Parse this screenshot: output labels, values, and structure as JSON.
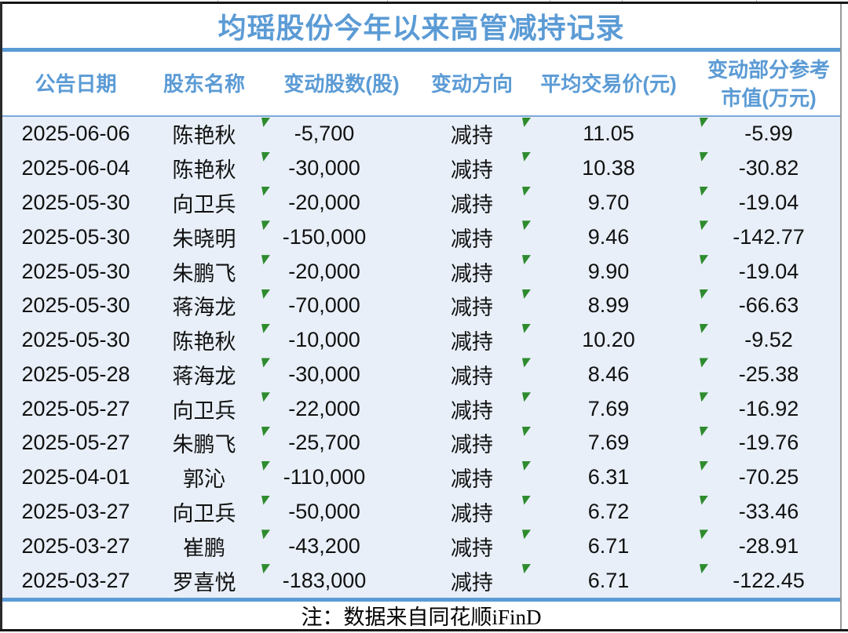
{
  "title": "均瑶股份今年以来高管减持记录",
  "table": {
    "headers": [
      "公告日期",
      "股东名称",
      "变动股数(股)",
      "变动方向",
      "平均交易价(元)",
      "变动部分参考",
      "市值(万元)"
    ],
    "row_fields": [
      "date",
      "name",
      "shares",
      "direction",
      "price",
      "value"
    ],
    "flag_columns": [
      "shares",
      "price",
      "value"
    ],
    "rows": [
      {
        "date": "2025-06-06",
        "name": "陈艳秋",
        "shares": "-5,700",
        "direction": "减持",
        "price": "11.05",
        "value": "-5.99"
      },
      {
        "date": "2025-06-04",
        "name": "陈艳秋",
        "shares": "-30,000",
        "direction": "减持",
        "price": "10.38",
        "value": "-30.82"
      },
      {
        "date": "2025-05-30",
        "name": "向卫兵",
        "shares": "-20,000",
        "direction": "减持",
        "price": "9.70",
        "value": "-19.04"
      },
      {
        "date": "2025-05-30",
        "name": "朱晓明",
        "shares": "-150,000",
        "direction": "减持",
        "price": "9.46",
        "value": "-142.77"
      },
      {
        "date": "2025-05-30",
        "name": "朱鹏飞",
        "shares": "-20,000",
        "direction": "减持",
        "price": "9.90",
        "value": "-19.04"
      },
      {
        "date": "2025-05-30",
        "name": "蒋海龙",
        "shares": "-70,000",
        "direction": "减持",
        "price": "8.99",
        "value": "-66.63"
      },
      {
        "date": "2025-05-30",
        "name": "陈艳秋",
        "shares": "-10,000",
        "direction": "减持",
        "price": "10.20",
        "value": "-9.52"
      },
      {
        "date": "2025-05-28",
        "name": "蒋海龙",
        "shares": "-30,000",
        "direction": "减持",
        "price": "8.46",
        "value": "-25.38"
      },
      {
        "date": "2025-05-27",
        "name": "向卫兵",
        "shares": "-22,000",
        "direction": "减持",
        "price": "7.69",
        "value": "-16.92"
      },
      {
        "date": "2025-05-27",
        "name": "朱鹏飞",
        "shares": "-25,700",
        "direction": "减持",
        "price": "7.69",
        "value": "-19.76"
      },
      {
        "date": "2025-04-01",
        "name": "郭沁",
        "shares": "-110,000",
        "direction": "减持",
        "price": "6.31",
        "value": "-70.25"
      },
      {
        "date": "2025-03-27",
        "name": "向卫兵",
        "shares": "-50,000",
        "direction": "减持",
        "price": "6.72",
        "value": "-33.46"
      },
      {
        "date": "2025-03-27",
        "name": "崔鹏",
        "shares": "-43,200",
        "direction": "减持",
        "price": "6.71",
        "value": "-28.91"
      },
      {
        "date": "2025-03-27",
        "name": "罗喜悦",
        "shares": "-183,000",
        "direction": "减持",
        "price": "6.71",
        "value": "-122.45"
      }
    ]
  },
  "footer": {
    "note": "注：数据来自同花顺iFinD"
  },
  "icons": {
    "corner_flag": "green-corner-triangle"
  },
  "colors": {
    "accent_blue": "#5b9bd5",
    "body_bg": "#e8eff8",
    "flag_green": "#2e8b2e",
    "text_dark": "#111111"
  },
  "chart_data": {
    "type": "table",
    "title": "均瑶股份今年以来高管减持记录",
    "columns": [
      "公告日期",
      "股东名称",
      "变动股数(股)",
      "变动方向",
      "平均交易价(元)",
      "变动部分参考市值(万元)"
    ],
    "rows": [
      [
        "2025-06-06",
        "陈艳秋",
        -5700,
        "减持",
        11.05,
        -5.99
      ],
      [
        "2025-06-04",
        "陈艳秋",
        -30000,
        "减持",
        10.38,
        -30.82
      ],
      [
        "2025-05-30",
        "向卫兵",
        -20000,
        "减持",
        9.7,
        -19.04
      ],
      [
        "2025-05-30",
        "朱晓明",
        -150000,
        "减持",
        9.46,
        -142.77
      ],
      [
        "2025-05-30",
        "朱鹏飞",
        -20000,
        "减持",
        9.9,
        -19.04
      ],
      [
        "2025-05-30",
        "蒋海龙",
        -70000,
        "减持",
        8.99,
        -66.63
      ],
      [
        "2025-05-30",
        "陈艳秋",
        -10000,
        "减持",
        10.2,
        -9.52
      ],
      [
        "2025-05-28",
        "蒋海龙",
        -30000,
        "减持",
        8.46,
        -25.38
      ],
      [
        "2025-05-27",
        "向卫兵",
        -22000,
        "减持",
        7.69,
        -16.92
      ],
      [
        "2025-05-27",
        "朱鹏飞",
        -25700,
        "减持",
        7.69,
        -19.76
      ],
      [
        "2025-04-01",
        "郭沁",
        -110000,
        "减持",
        6.31,
        -70.25
      ],
      [
        "2025-03-27",
        "向卫兵",
        -50000,
        "减持",
        6.72,
        -33.46
      ],
      [
        "2025-03-27",
        "崔鹏",
        -43200,
        "减持",
        6.71,
        -28.91
      ],
      [
        "2025-03-27",
        "罗喜悦",
        -183000,
        "减持",
        6.71,
        -122.45
      ]
    ],
    "source_note": "注：数据来自同花顺iFinD",
    "legend_position": "none",
    "grid": false
  }
}
